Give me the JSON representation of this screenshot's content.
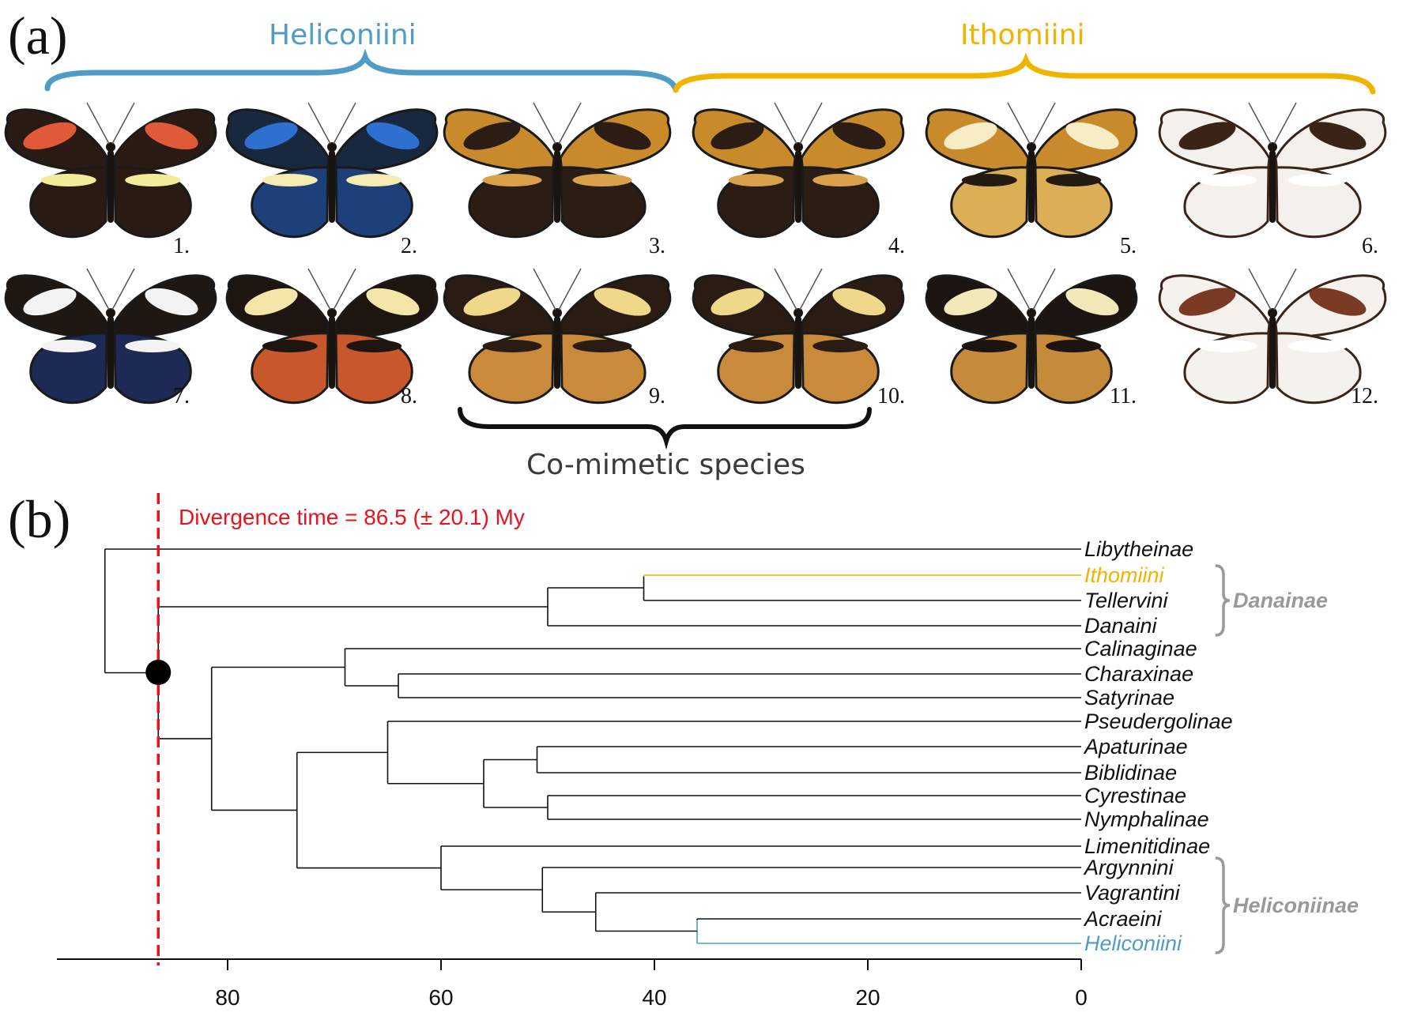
{
  "panel_a": {
    "label": "(a)",
    "groups": [
      {
        "name": "Heliconiini",
        "color": "#4f9dc7"
      },
      {
        "name": "Ithomiini",
        "color": "#f0b400"
      }
    ],
    "butterflies": [
      {
        "n": "1.",
        "pattern": "red-band-yellow-bar"
      },
      {
        "n": "2.",
        "pattern": "blue-iridescent-yellow-bar"
      },
      {
        "n": "3.",
        "pattern": "tiger-orange-black"
      },
      {
        "n": "4.",
        "pattern": "tiger-orange-black"
      },
      {
        "n": "5.",
        "pattern": "yellow-translucent-bands"
      },
      {
        "n": "6.",
        "pattern": "clearwing-white-spots"
      },
      {
        "n": "7.",
        "pattern": "blue-white-margin"
      },
      {
        "n": "8.",
        "pattern": "rayed-orange-yellow-spots"
      },
      {
        "n": "9.",
        "pattern": "tiger-striped-orange"
      },
      {
        "n": "10.",
        "pattern": "tiger-striped-orange"
      },
      {
        "n": "11.",
        "pattern": "orange-black-spotted"
      },
      {
        "n": "12.",
        "pattern": "clearwing-glass"
      }
    ],
    "comimetic_label": "Co-mimetic species"
  },
  "panel_b": {
    "label": "(b)",
    "divergence_label": "Divergence time = 86.5 (± 20.1) My",
    "divergence_color": "#e8141c",
    "taxa": [
      "Libytheinae",
      "Ithomiini",
      "Tellervini",
      "Danaini",
      "Calinaginae",
      "Charaxinae",
      "Satyrinae",
      "Pseudergolinae",
      "Apaturinae",
      "Biblidinae",
      "Cyrestinae",
      "Nymphalinae",
      "Limenitidinae",
      "Argynnini",
      "Vagrantini",
      "Acraeini",
      "Heliconiini"
    ],
    "clades": [
      {
        "name": "Danainae",
        "taxa": [
          "Ithomiini",
          "Tellervini",
          "Danaini"
        ]
      },
      {
        "name": "Heliconiinae",
        "taxa": [
          "Argynnini",
          "Vagrantini",
          "Acraeini",
          "Heliconiini"
        ]
      }
    ],
    "axis_ticks": [
      "80",
      "60",
      "40",
      "20",
      "0"
    ]
  },
  "chart_data": {
    "type": "tree",
    "x_axis": {
      "unit": "My before present",
      "ticks": [
        80,
        60,
        40,
        20,
        0
      ],
      "range": [
        96,
        0
      ]
    },
    "divergence_time": 86.5,
    "divergence_sd": 20.1,
    "highlighted_node_age": 86.5,
    "nodes": [
      {
        "age": 91.5,
        "children": [
          "Libytheinae",
          "node_86.5"
        ]
      },
      {
        "age": 86.5,
        "children": [
          "node_50",
          "node_81.5"
        ]
      },
      {
        "age": 50,
        "children": [
          "node_41",
          "Danaini"
        ]
      },
      {
        "age": 41,
        "children": [
          "Ithomiini",
          "Tellervini"
        ]
      },
      {
        "age": 81.5,
        "children": [
          "node_69",
          "node_73.5"
        ]
      },
      {
        "age": 69,
        "children": [
          "Calinaginae",
          "node_64"
        ]
      },
      {
        "age": 64,
        "children": [
          "Charaxinae",
          "Satyrinae"
        ]
      },
      {
        "age": 73.5,
        "children": [
          "node_65",
          "node_60"
        ]
      },
      {
        "age": 65,
        "children": [
          "Pseudergolinae",
          "node_56"
        ]
      },
      {
        "age": 56,
        "children": [
          "node_51",
          "node_50b"
        ]
      },
      {
        "age": 51,
        "children": [
          "Apaturinae",
          "Biblidinae"
        ]
      },
      {
        "age": 50,
        "children": [
          "Cyrestinae",
          "Nymphalinae"
        ]
      },
      {
        "age": 60,
        "children": [
          "Limenitidinae",
          "node_50.5"
        ]
      },
      {
        "age": 50.5,
        "children": [
          "Argynnini",
          "node_45.5"
        ]
      },
      {
        "age": 45.5,
        "children": [
          "Vagrantini",
          "node_36"
        ]
      },
      {
        "age": 36,
        "children": [
          "Acraeini",
          "Heliconiini"
        ]
      }
    ],
    "highlight": {
      "Ithomiini": "#f0b400",
      "Heliconiini": "#4f9dc7"
    }
  }
}
